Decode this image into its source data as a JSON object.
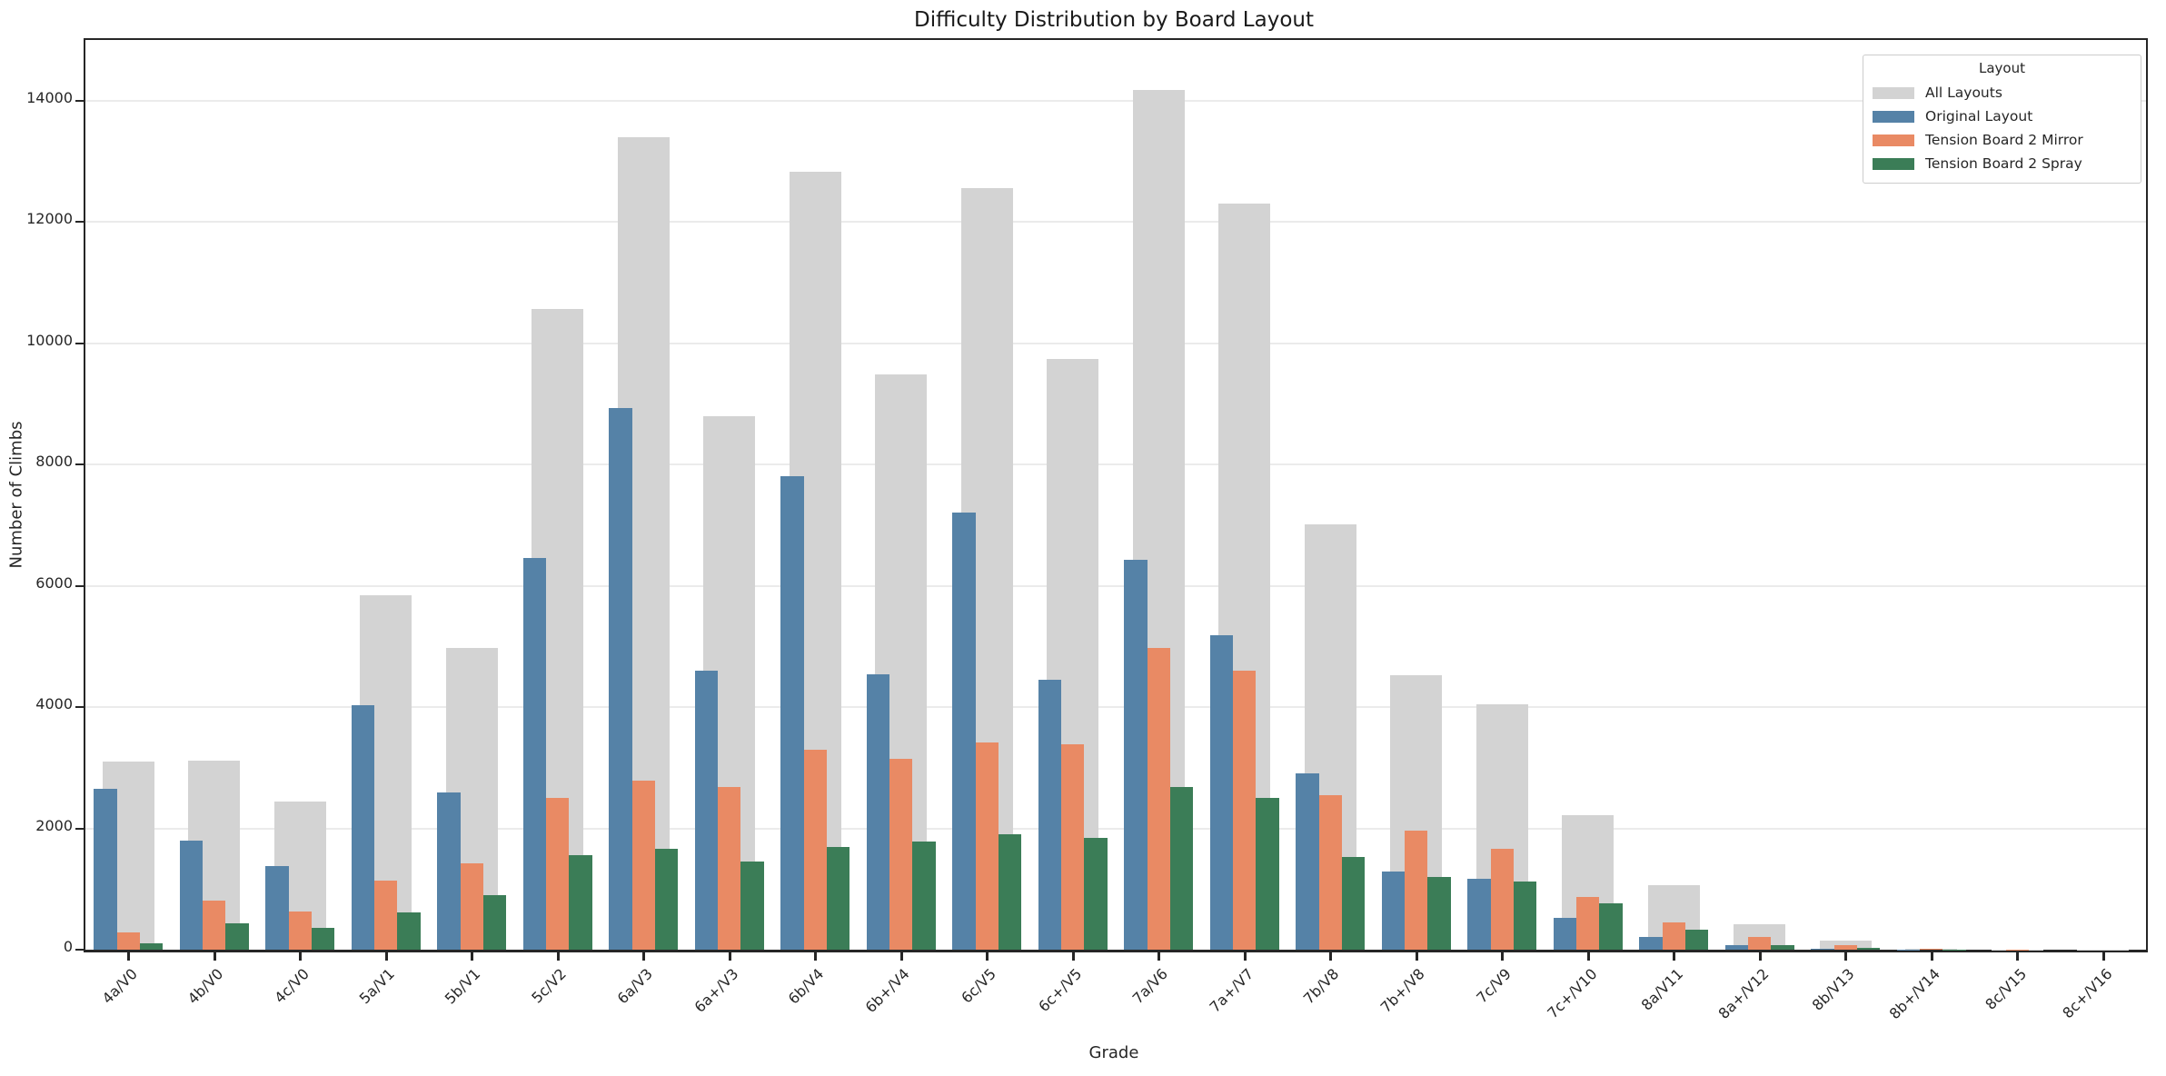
{
  "accent_colors": {
    "all_layouts": "#d3d3d3",
    "original": "#5582a7",
    "mirror": "#e98a64",
    "spray": "#3b7d57",
    "spine": "#262626",
    "grid": "#ebebeb"
  },
  "legend": {
    "title": "Layout",
    "entries": [
      {
        "label": "All Layouts",
        "color": "#d3d3d3"
      },
      {
        "label": "Original Layout",
        "color": "#5582a7"
      },
      {
        "label": "Tension Board 2 Mirror",
        "color": "#e98a64"
      },
      {
        "label": "Tension Board 2 Spray",
        "color": "#3b7d57"
      }
    ]
  },
  "chart_data": {
    "type": "bar",
    "title": "Difficulty Distribution by Board Layout",
    "xlabel": "Grade",
    "ylabel": "Number of Climbs",
    "ylim": [
      0,
      15000
    ],
    "yticks": [
      0,
      2000,
      4000,
      6000,
      8000,
      10000,
      12000,
      14000
    ],
    "grid": "horizontal",
    "legend_position": "upper right",
    "categories": [
      "4a/V0",
      "4b/V0",
      "4c/V0",
      "5a/V1",
      "5b/V1",
      "5c/V2",
      "6a/V3",
      "6a+/V3",
      "6b/V4",
      "6b+/V4",
      "6c/V5",
      "6c+/V5",
      "7a/V6",
      "7a+/V7",
      "7b/V8",
      "7b+/V8",
      "7c/V9",
      "7c+/V10",
      "8a/V11",
      "8a+/V12",
      "8b/V13",
      "8b+/V14",
      "8c/V15",
      "8c+/V16"
    ],
    "series": [
      {
        "name": "All Layouts",
        "color": "#d3d3d3",
        "values": [
          3105,
          3115,
          2445,
          5840,
          4975,
          10560,
          13400,
          8790,
          12830,
          9490,
          12560,
          9740,
          14170,
          12310,
          7020,
          4530,
          4040,
          2220,
          1070,
          420,
          150,
          20,
          6,
          3
        ]
      },
      {
        "name": "Original Layout",
        "color": "#5582a7",
        "values": [
          2650,
          1795,
          1380,
          4030,
          2595,
          6465,
          8930,
          4600,
          7800,
          4540,
          7210,
          4450,
          6430,
          5180,
          2910,
          1290,
          1170,
          520,
          210,
          75,
          20,
          5,
          1,
          0
        ]
      },
      {
        "name": "Tension Board 2 Mirror",
        "color": "#e98a64",
        "values": [
          290,
          805,
          625,
          1140,
          1425,
          2505,
          2790,
          2690,
          3300,
          3150,
          3420,
          3380,
          4980,
          4600,
          2550,
          1965,
          1670,
          870,
          450,
          205,
          80,
          12,
          2,
          1
        ]
      },
      {
        "name": "Tension Board 2 Spray",
        "color": "#3b7d57",
        "values": [
          105,
          440,
          360,
          615,
          905,
          1555,
          1660,
          1450,
          1690,
          1780,
          1910,
          1850,
          2680,
          2500,
          1530,
          1205,
          1125,
          770,
          325,
          80,
          25,
          4,
          1,
          0
        ]
      }
    ]
  }
}
